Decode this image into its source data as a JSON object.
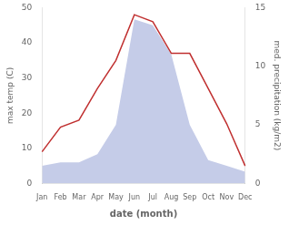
{
  "chart_data": {
    "type": "line",
    "categories": [
      "Jan",
      "Feb",
      "Mar",
      "Apr",
      "May",
      "Jun",
      "Jul",
      "Aug",
      "Sep",
      "Oct",
      "Nov",
      "Dec"
    ],
    "series": [
      {
        "type": "area",
        "axis": "y2",
        "color": "#c5cce8",
        "values": [
          1.5,
          1.8,
          1.8,
          2.5,
          5.0,
          14.0,
          13.5,
          11.0,
          5.0,
          2.0,
          1.5,
          1.0
        ]
      },
      {
        "type": "line",
        "color": "#c03030",
        "values": [
          9,
          16,
          18,
          27,
          35,
          48,
          46,
          37,
          37,
          27,
          17,
          5
        ]
      }
    ],
    "xlabel": "date (month)",
    "ylabel": "max temp (C)",
    "y2label": "med. precipitation (kg/m2)",
    "ylim": [
      0,
      50
    ],
    "yticks": [
      0,
      10,
      20,
      30,
      40,
      50
    ],
    "y2lim": [
      0,
      15
    ],
    "y2ticks": [
      0,
      5,
      10,
      15
    ],
    "grid": false
  }
}
